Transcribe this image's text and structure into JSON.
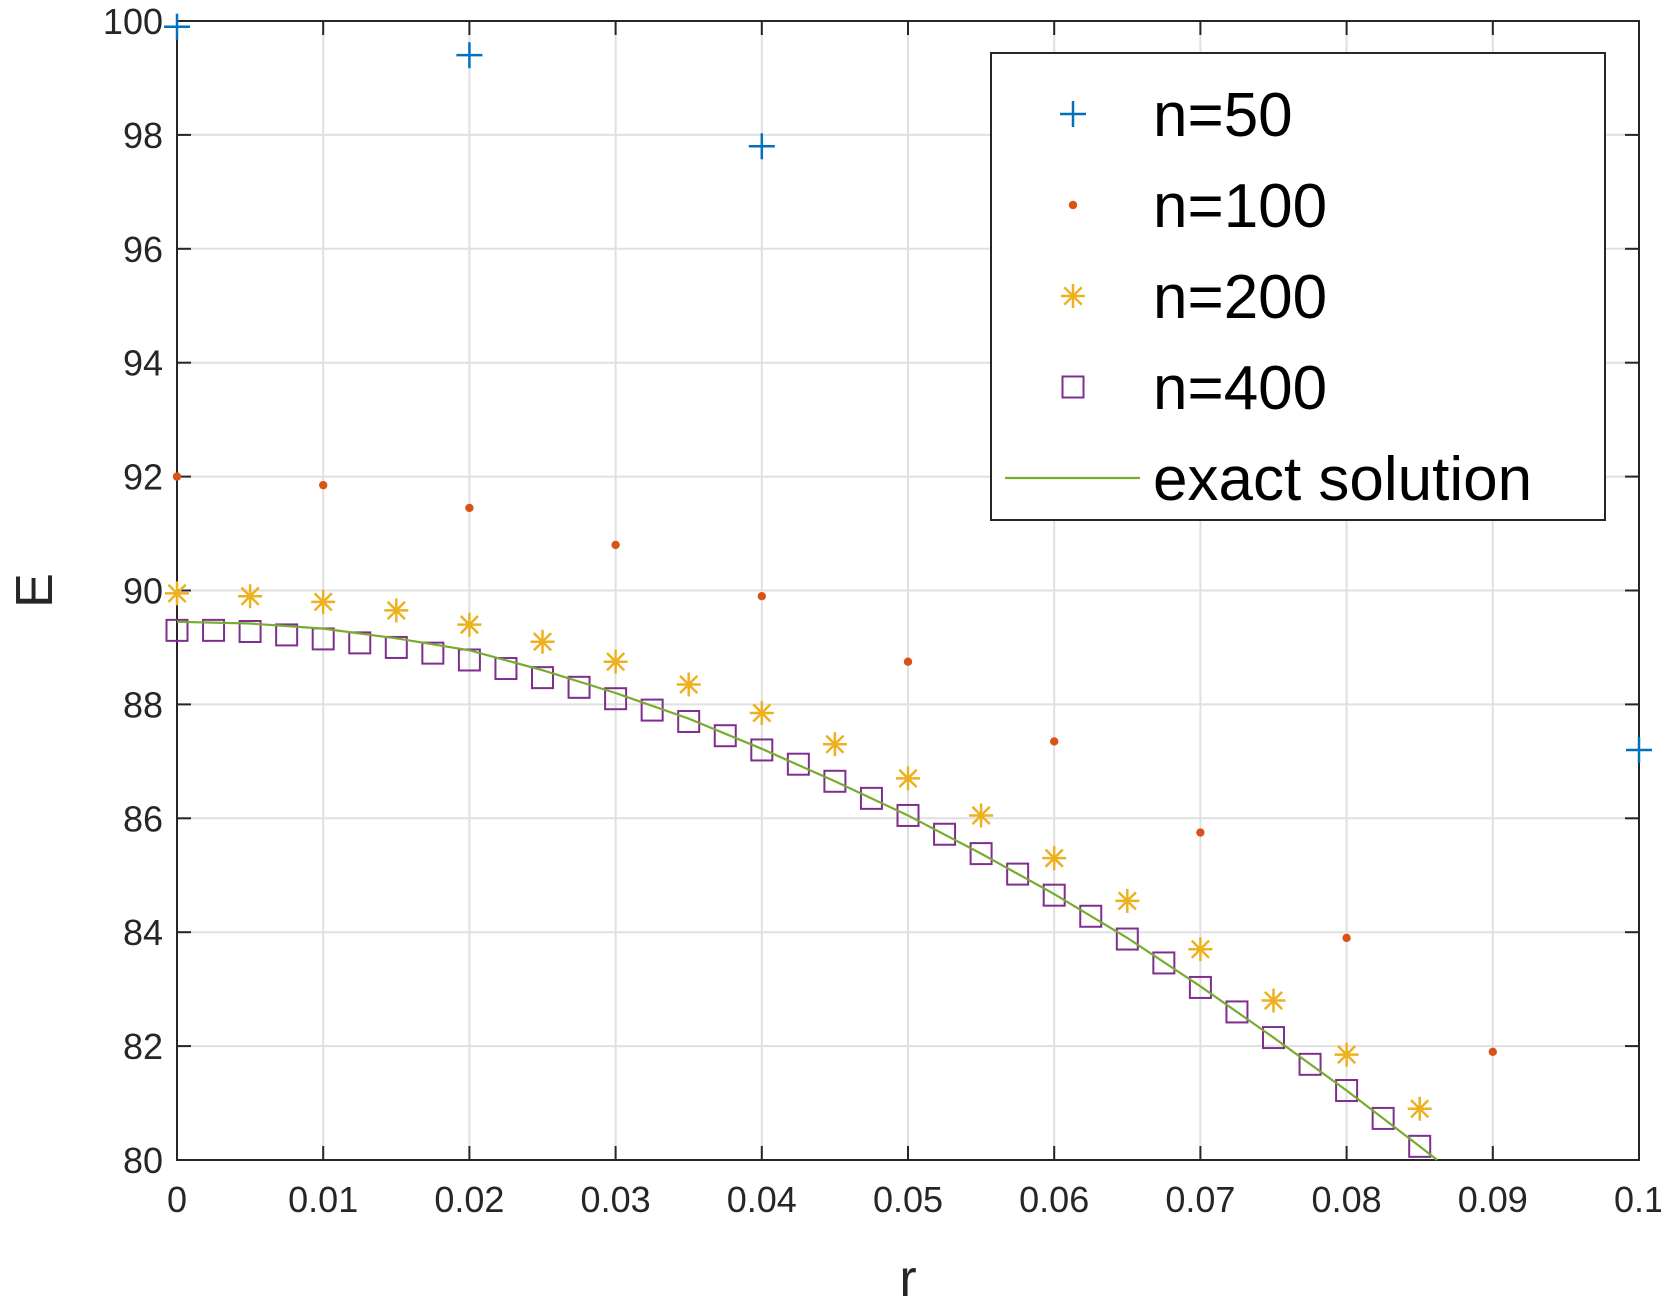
{
  "chart_data": {
    "type": "scatter",
    "title": "",
    "xlabel": "r",
    "ylabel": "E",
    "xlim": [
      0,
      0.1
    ],
    "ylim": [
      80,
      100
    ],
    "grid": true,
    "legend_position": "top-right",
    "x_ticks": [
      "0",
      "0.01",
      "0.02",
      "0.03",
      "0.04",
      "0.05",
      "0.06",
      "0.07",
      "0.08",
      "0.09",
      "0.1"
    ],
    "y_ticks": [
      "80",
      "82",
      "84",
      "86",
      "88",
      "90",
      "92",
      "94",
      "96",
      "98",
      "100"
    ],
    "colors": {
      "n50": "#0072BD",
      "n100": "#D95319",
      "n200": "#EDB120",
      "n400": "#7E2F8E",
      "exact": "#77AC30"
    },
    "series": [
      {
        "name": "n=50",
        "marker": "plus",
        "color_key": "n50",
        "x": [
          0,
          0.02,
          0.04,
          0.1
        ],
        "y": [
          99.9,
          99.4,
          97.8,
          87.2
        ]
      },
      {
        "name": "n=100",
        "marker": "dot",
        "color_key": "n100",
        "x": [
          0,
          0.01,
          0.02,
          0.03,
          0.04,
          0.05,
          0.06,
          0.07,
          0.08,
          0.09
        ],
        "y": [
          92.0,
          91.85,
          91.45,
          90.8,
          89.9,
          88.75,
          87.35,
          85.75,
          83.9,
          81.9
        ]
      },
      {
        "name": "n=200",
        "marker": "asterisk",
        "color_key": "n200",
        "x": [
          0,
          0.005,
          0.01,
          0.015,
          0.02,
          0.025,
          0.03,
          0.035,
          0.04,
          0.045,
          0.05,
          0.055,
          0.06,
          0.065,
          0.07,
          0.075,
          0.08,
          0.085
        ],
        "y": [
          89.95,
          89.9,
          89.8,
          89.65,
          89.4,
          89.1,
          88.75,
          88.35,
          87.85,
          87.3,
          86.7,
          86.05,
          85.3,
          84.55,
          83.7,
          82.8,
          81.85,
          80.9
        ]
      },
      {
        "name": "n=400",
        "marker": "square",
        "color_key": "n400",
        "x": [
          0,
          0.0025,
          0.005,
          0.0075,
          0.01,
          0.0125,
          0.015,
          0.0175,
          0.02,
          0.0225,
          0.025,
          0.0275,
          0.03,
          0.0325,
          0.035,
          0.0375,
          0.04,
          0.0425,
          0.045,
          0.0475,
          0.05,
          0.0525,
          0.055,
          0.0575,
          0.06,
          0.0625,
          0.065,
          0.0675,
          0.07,
          0.0725,
          0.075,
          0.0775,
          0.08,
          0.0825,
          0.085
        ],
        "y": [
          89.3,
          89.3,
          89.28,
          89.22,
          89.15,
          89.08,
          89.0,
          88.9,
          88.78,
          88.63,
          88.47,
          88.3,
          88.1,
          87.9,
          87.7,
          87.45,
          87.2,
          86.95,
          86.65,
          86.35,
          86.05,
          85.72,
          85.38,
          85.02,
          84.65,
          84.28,
          83.88,
          83.46,
          83.03,
          82.6,
          82.15,
          81.68,
          81.22,
          80.73,
          80.24
        ]
      },
      {
        "name": "exact solution",
        "marker": "line",
        "color_key": "exact",
        "x": [
          0,
          0.005,
          0.01,
          0.015,
          0.02,
          0.025,
          0.03,
          0.035,
          0.04,
          0.045,
          0.05,
          0.055,
          0.06,
          0.065,
          0.07,
          0.075,
          0.08,
          0.085,
          0.0862
        ],
        "y": [
          89.45,
          89.42,
          89.33,
          89.16,
          88.95,
          88.6,
          88.2,
          87.75,
          87.22,
          86.65,
          86.05,
          85.38,
          84.67,
          83.9,
          83.05,
          82.15,
          81.22,
          80.24,
          80.0
        ]
      }
    ]
  }
}
